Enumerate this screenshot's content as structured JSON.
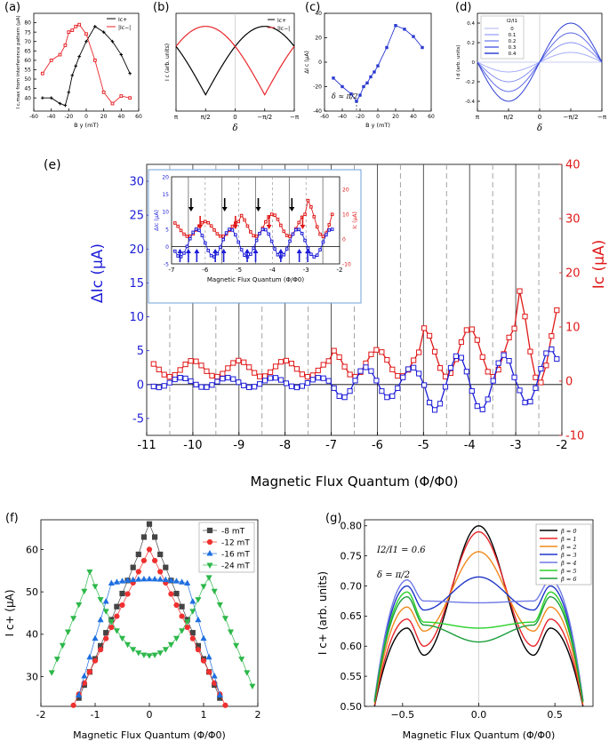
{
  "panel_labels": {
    "a": "(a)",
    "b": "(b)",
    "c": "(c)",
    "d": "(d)",
    "e": "(e)",
    "f": "(f)",
    "g": "(g)"
  },
  "chart_data": [
    {
      "id": "a",
      "type": "line",
      "ylabel": "I c,max from interference pattern (μA)",
      "xlabel": "B y (mT)",
      "xlim": [
        -60,
        60
      ],
      "ylim": [
        33,
        85
      ],
      "xticks": [
        -60,
        -40,
        -20,
        0,
        20,
        40,
        60
      ],
      "yticks": [
        40,
        45,
        50,
        55,
        60,
        65,
        70,
        75,
        80
      ],
      "legend": "top-right",
      "series": [
        {
          "name": "Ic+",
          "color": "#000000",
          "x": [
            -50,
            -40,
            -30,
            -24,
            -20,
            -16,
            -12,
            -8,
            0,
            10,
            20,
            30,
            40,
            50
          ],
          "y": [
            40,
            40,
            37,
            36,
            43,
            52,
            57,
            62,
            70,
            78,
            75,
            70,
            63,
            53
          ]
        },
        {
          "name": "|Ic−|",
          "color": "#e8262b",
          "x": [
            -50,
            -40,
            -30,
            -24,
            -20,
            -16,
            -12,
            -8,
            0,
            10,
            20,
            30,
            40,
            50
          ],
          "y": [
            53,
            60,
            63,
            68,
            75,
            76,
            78,
            79,
            74,
            60,
            43,
            37,
            41,
            40
          ]
        }
      ]
    },
    {
      "id": "b",
      "type": "line",
      "ylabel": "I c (arb. units)",
      "xlabel": "δ",
      "xticks_labels": [
        "π",
        "π/2",
        "0",
        "−π/2",
        "−π"
      ],
      "legend": "top-right",
      "series": [
        {
          "name": "Ic+",
          "color": "#000000",
          "shape": "|cos| minimum at π/2, max at −π/2"
        },
        {
          "name": "|Ic−|",
          "color": "#e8262b",
          "shape": "max at π/2, min at −π/2"
        }
      ]
    },
    {
      "id": "c",
      "type": "line",
      "ylabel": "ΔI c (μA)",
      "xlabel": "B y (mT)",
      "xlim": [
        -60,
        60
      ],
      "ylim": [
        -40,
        40
      ],
      "xticks": [
        -60,
        -40,
        -20,
        0,
        20,
        40,
        60
      ],
      "yticks": [
        -40,
        -20,
        0,
        20,
        40
      ],
      "annotation": "δ ≈ π/2",
      "x": [
        -50,
        -40,
        -30,
        -24,
        -20,
        -16,
        -12,
        -8,
        -4,
        0,
        10,
        20,
        30,
        40,
        50
      ],
      "y": [
        -13,
        -20,
        -26,
        -32,
        -27,
        -20,
        -17,
        -12,
        -8,
        -3,
        12,
        30,
        27,
        21,
        12
      ]
    },
    {
      "id": "d",
      "type": "line",
      "ylabel": "I d (arb. units)",
      "xlabel": "δ",
      "xticks_labels": [
        "π",
        "π/2",
        "0",
        "−π/2",
        "−π"
      ],
      "yticks": [
        -0.4,
        -0.2,
        0,
        0.2,
        0.4
      ],
      "legend_title": "I2/I1",
      "series": [
        {
          "name": "0",
          "amp": 0.0
        },
        {
          "name": "0.1",
          "amp": 0.1
        },
        {
          "name": "0.2",
          "amp": 0.2
        },
        {
          "name": "0.3",
          "amp": 0.3
        },
        {
          "name": "0.4",
          "amp": 0.4
        }
      ]
    },
    {
      "id": "e",
      "type": "line",
      "ylabel_left": "ΔIc (μA)",
      "ylabel_right": "Ic (μA)",
      "xlabel": "Magnetic Flux Quantum (Φ/Φ0)",
      "xlim": [
        -11,
        -2
      ],
      "ylim_left": [
        -7.5,
        32.5
      ],
      "ylim_right": [
        -10,
        40
      ],
      "xticks": [
        -11,
        -10,
        -9,
        -8,
        -7,
        -6,
        -5,
        -4,
        -3,
        -2
      ],
      "yticks_left": [
        -5,
        0,
        5,
        10,
        15,
        20,
        25,
        30
      ],
      "yticks_right": [
        -10,
        0,
        10,
        20,
        30,
        40
      ],
      "inset": {
        "xlim": [
          -7,
          -2
        ],
        "ylim_left": [
          -5,
          20
        ],
        "ylim_right": [
          -10,
          25
        ],
        "xticks": [
          -7,
          -6,
          -5,
          -4,
          -3,
          -2
        ],
        "yticks_left": [
          -5,
          0,
          5,
          10,
          15,
          20
        ],
        "yticks_right": [
          -10,
          0,
          10,
          20
        ],
        "xlabel": "Magnetic Flux Quantum (Φ/Φ0)",
        "ylabel_left": "ΔIc (μA)",
        "ylabel_right": "Ic (μA)"
      }
    },
    {
      "id": "f",
      "type": "scatter",
      "ylabel": "I c+ (μA)",
      "xlabel": "Magnetic Flux Quantum (Φ/Φ0)",
      "xlim": [
        -2,
        2
      ],
      "ylim": [
        23,
        67
      ],
      "xticks": [
        -2,
        -1,
        0,
        1,
        2
      ],
      "yticks": [
        30,
        40,
        50,
        60
      ],
      "legend": "top-right",
      "series": [
        {
          "name": "-8 mT",
          "marker": "square",
          "color": "#444444"
        },
        {
          "name": "-12 mT",
          "marker": "circle",
          "color": "#f03030"
        },
        {
          "name": "-16 mT",
          "marker": "triangle-up",
          "color": "#1e6fe0"
        },
        {
          "name": "-24 mT",
          "marker": "triangle-down",
          "color": "#2db84a"
        }
      ]
    },
    {
      "id": "g",
      "type": "line",
      "ylabel": "I c+ (arb. units)",
      "xlabel": "Magnetic Flux Quantum (Φ/Φ0)",
      "xlim": [
        -0.75,
        0.75
      ],
      "ylim": [
        0.5,
        0.81
      ],
      "xticks": [
        -0.5,
        0.0,
        0.5
      ],
      "yticks": [
        0.5,
        0.55,
        0.6,
        0.65,
        0.7,
        0.75,
        0.8
      ],
      "annotations": [
        "I2/I1 = 0.6",
        "δ = π/2"
      ],
      "legend": "top-right",
      "series": [
        {
          "name": "β = 0",
          "color": "#000000",
          "peak": 0.8,
          "side": 0.63,
          "dip": 0.585
        },
        {
          "name": "β = 1",
          "color": "#e8262b",
          "peak": 0.79,
          "side": 0.645,
          "dip": 0.6
        },
        {
          "name": "β = 2",
          "color": "#f08a1c",
          "peak": 0.757,
          "side": 0.665,
          "dip": 0.625
        },
        {
          "name": "β = 3",
          "color": "#2036c9",
          "peak": 0.715,
          "side": 0.7,
          "dip": 0.66
        },
        {
          "name": "β = 4",
          "color": "#6f79e6",
          "peak": 0.672,
          "side": 0.71,
          "dip": 0.675
        },
        {
          "name": "β = 5",
          "color": "#2ad12a",
          "peak": 0.63,
          "side": 0.69,
          "dip": 0.64
        },
        {
          "name": "β = 6",
          "color": "#1a9e3a",
          "peak": 0.607,
          "side": 0.682,
          "dip": 0.635
        }
      ]
    }
  ],
  "texts": {
    "a_legend_1": "Ic+",
    "a_legend_2": "|Ic−|",
    "b_legend_1": "Ic+",
    "b_legend_2": "|Ic−|",
    "d_legend_title": "I2/I1",
    "c_annot": "δ ≈ π/2",
    "g_annot1": "I2/I1 = 0.6",
    "g_annot2": "δ = π/2"
  }
}
